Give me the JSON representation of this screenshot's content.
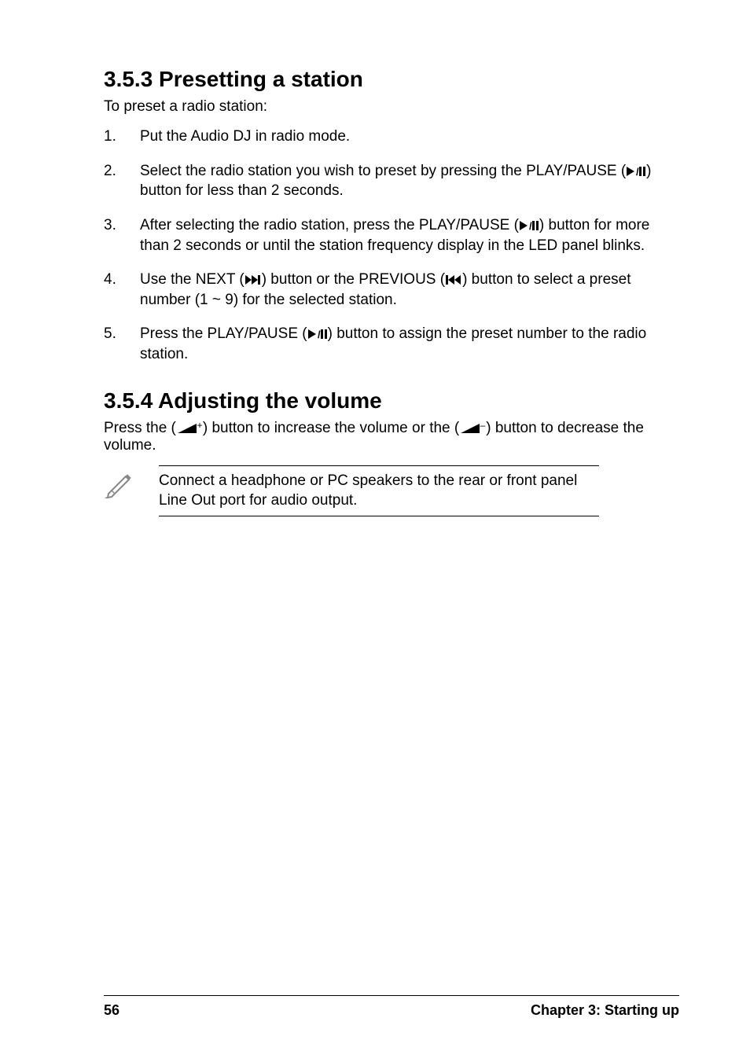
{
  "section1": {
    "heading": "3.5.3  Presetting a station",
    "intro": "To preset a radio station:",
    "steps": [
      {
        "num": "1.",
        "parts": [
          {
            "t": "text",
            "v": "Put the Audio DJ in radio mode."
          }
        ]
      },
      {
        "num": "2.",
        "parts": [
          {
            "t": "text",
            "v": "Select the radio station you wish to preset by pressing the PLAY/PAUSE ("
          },
          {
            "t": "icon",
            "name": "play-pause"
          },
          {
            "t": "text",
            "v": ") button for less than 2 seconds."
          }
        ]
      },
      {
        "num": "3.",
        "parts": [
          {
            "t": "text",
            "v": "After selecting the radio station, press the PLAY/PAUSE ("
          },
          {
            "t": "icon",
            "name": "play-pause"
          },
          {
            "t": "text",
            "v": ") button for more than 2 seconds or until the station frequency display in the LED panel blinks."
          }
        ]
      },
      {
        "num": "4.",
        "parts": [
          {
            "t": "text",
            "v": "Use the NEXT ("
          },
          {
            "t": "icon",
            "name": "next"
          },
          {
            "t": "text",
            "v": ") button or the PREVIOUS ("
          },
          {
            "t": "icon",
            "name": "prev"
          },
          {
            "t": "text",
            "v": ") button to select a preset number (1 ~ 9) for the selected station."
          }
        ]
      },
      {
        "num": "5.",
        "parts": [
          {
            "t": "text",
            "v": "Press the PLAY/PAUSE ("
          },
          {
            "t": "icon",
            "name": "play-pause"
          },
          {
            "t": "text",
            "v": ") button to assign the preset number to the radio station."
          }
        ]
      }
    ]
  },
  "section2": {
    "heading": "3.5.4  Adjusting the volume",
    "intro_parts": [
      {
        "t": "text",
        "v": "Press the ("
      },
      {
        "t": "icon",
        "name": "vol-up"
      },
      {
        "t": "text",
        "v": ") button to increase the volume or the ("
      },
      {
        "t": "icon",
        "name": "vol-down"
      },
      {
        "t": "text",
        "v": ") button to decrease the volume."
      }
    ],
    "note": "Connect a headphone or PC speakers to the rear or front panel Line Out port for audio output."
  },
  "footer": {
    "page": "56",
    "chapter": "Chapter 3: Starting up"
  }
}
